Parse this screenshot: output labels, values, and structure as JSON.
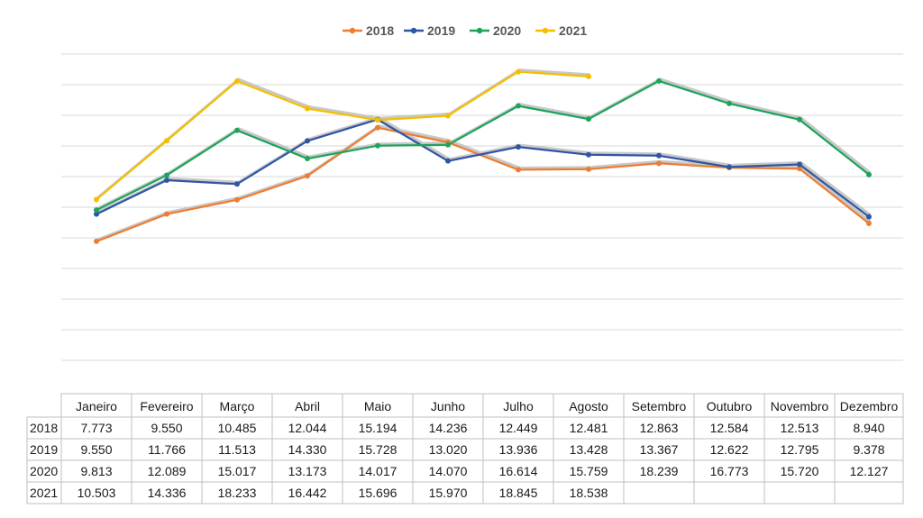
{
  "chart_data": {
    "type": "line",
    "title": "",
    "xlabel": "",
    "ylabel": "",
    "ylim": [
      0,
      20000
    ],
    "grid": true,
    "legend_position": "top-center",
    "categories": [
      "Janeiro",
      "Fevereiro",
      "Março",
      "Abril",
      "Maio",
      "Junho",
      "Julho",
      "Agosto",
      "Setembro",
      "Outubro",
      "Novembro",
      "Dezembro"
    ],
    "series": [
      {
        "name": "2018",
        "color": "#ED7D31",
        "values": [
          7773,
          9550,
          10485,
          12044,
          15194,
          14236,
          12449,
          12481,
          12863,
          12584,
          12513,
          8940
        ],
        "labels": [
          "7.773",
          "9.550",
          "10.485",
          "12.044",
          "15.194",
          "14.236",
          "12.449",
          "12.481",
          "12.863",
          "12.584",
          "12.513",
          "8.940"
        ]
      },
      {
        "name": "2019",
        "color": "#2F55A4",
        "values": [
          9550,
          11766,
          11513,
          14330,
          15728,
          13020,
          13936,
          13428,
          13367,
          12622,
          12795,
          9378
        ],
        "labels": [
          "9.550",
          "11.766",
          "11.513",
          "14.330",
          "15.728",
          "13.020",
          "13.936",
          "13.428",
          "13.367",
          "12.622",
          "12.795",
          "9.378"
        ]
      },
      {
        "name": "2020",
        "color": "#1FA35A",
        "values": [
          9813,
          12089,
          15017,
          13173,
          14017,
          14070,
          16614,
          15759,
          18239,
          16773,
          15720,
          12127
        ],
        "labels": [
          "9.813",
          "12.089",
          "15.017",
          "13.173",
          "14.017",
          "14.070",
          "16.614",
          "15.759",
          "18.239",
          "16.773",
          "15.720",
          "12.127"
        ]
      },
      {
        "name": "2021",
        "color": "#F5BE00",
        "values": [
          10503,
          14336,
          18233,
          16442,
          15696,
          15970,
          18845,
          18538,
          null,
          null,
          null,
          null
        ],
        "labels": [
          "10.503",
          "14.336",
          "18.233",
          "16.442",
          "15.696",
          "15.970",
          "18.845",
          "18.538",
          "",
          "",
          "",
          ""
        ]
      }
    ]
  }
}
